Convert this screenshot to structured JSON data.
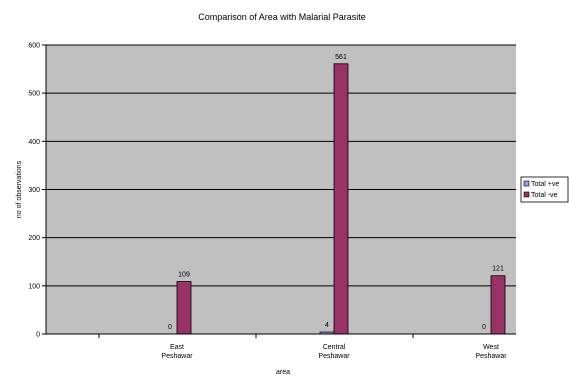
{
  "chart_data": {
    "type": "bar",
    "title": "Comparison of Area with Malarial Parasite",
    "xlabel": "area",
    "ylabel": "no of observations",
    "categories": [
      [
        "East",
        "Peshawar"
      ],
      [
        "Central",
        "Peshawar"
      ],
      [
        "West",
        "Peshawar"
      ]
    ],
    "series": [
      {
        "name": "Total +ve",
        "values": [
          0,
          4,
          0
        ],
        "color": "#9999ff"
      },
      {
        "name": "Total -ve",
        "values": [
          109,
          561,
          121
        ],
        "color": "#993366"
      }
    ],
    "ylim": [
      0,
      600
    ],
    "yticks": [
      0,
      100,
      200,
      300,
      400,
      500,
      600
    ],
    "grid": true,
    "legend": "right",
    "plot_background": "#c0c0c0"
  }
}
